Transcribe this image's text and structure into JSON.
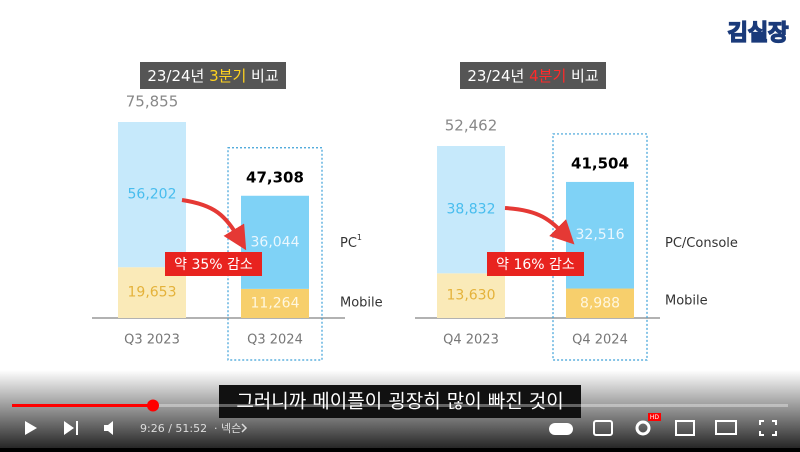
{
  "logo": "김실장",
  "slide": {
    "charts": [
      {
        "title": [
          "23/24년 ",
          "3분기",
          " 비교"
        ],
        "bars": [
          {
            "category": "Q3 2023",
            "total": {
              "value": 75855,
              "label": "75,855"
            },
            "pc": {
              "value": 56202,
              "label": "56,202"
            },
            "mobile": {
              "value": 19653,
              "label": "19,653"
            }
          },
          {
            "category": "Q3 2024",
            "total": {
              "value": 47308,
              "label": "47,308"
            },
            "pc": {
              "value": 36044,
              "label": "36,044"
            },
            "mobile": {
              "value": 11264,
              "label": "11,264"
            }
          }
        ],
        "change": "약 35% 감소",
        "legend": [
          "PC",
          "Mobile"
        ],
        "footnote": "1"
      },
      {
        "title": [
          "23/24년 ",
          "4분기",
          " 비교"
        ],
        "bars": [
          {
            "category": "Q4 2023",
            "total": {
              "value": 52462,
              "label": "52,462"
            },
            "pc": {
              "value": 38832,
              "label": "38,832"
            },
            "mobile": {
              "value": 13630,
              "label": "13,630"
            }
          },
          {
            "category": "Q4 2024",
            "total": {
              "value": 41504,
              "label": "41,504"
            },
            "pc": {
              "value": 32516,
              "label": "32,516"
            },
            "mobile": {
              "value": 8988,
              "label": "8,988"
            }
          }
        ],
        "change": "약 16% 감소",
        "legend": [
          "PC/Console",
          "Mobile"
        ]
      }
    ]
  },
  "subtitle": "그러니까 메이플이 굉장히 많이 빠진 것이",
  "player": {
    "time": "9:26 / 51:52",
    "channel": "· 넥슨",
    "badge": "HD"
  }
}
